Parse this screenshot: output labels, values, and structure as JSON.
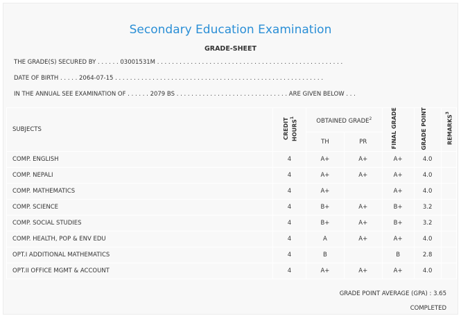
{
  "title": "Secondary Education Examination",
  "subtitle": "GRADE-SHEET",
  "info": {
    "line1": "THE GRADE(S) SECURED BY . . . . . . 03001531M . . . . . . . . . . . . . . . . . . . . . . . . . . . . . . . . . . . . . . . . . . . . . . . . . .",
    "line2": "DATE OF BIRTH . . . . . 2064-07-15 . . . . . . . . . . . . . . . . . . . . . . . . . . . . . . . . . . . . . . . . . . . . . . . . . . . . . . . .",
    "line3": "IN THE ANNUAL SEE EXAMINATION OF . . . . . . 2079 BS . . . . . . . . . . . . . . . . . . . . . . . . . . . . . . ARE GIVEN BELOW . . ."
  },
  "headers": {
    "subjects": "SUBJECTS",
    "credit": "CREDIT HOURS",
    "credit_sup": "1",
    "obtained": "OBTAINED GRADE",
    "obtained_sup": "2",
    "th": "TH",
    "pr": "PR",
    "final": "FINAL GRADE",
    "gp": "GRADE POINT",
    "remarks": "REMARKS",
    "remarks_sup": "3"
  },
  "rows": [
    {
      "subject": "COMP. ENGLISH",
      "credit": "4",
      "th": "A+",
      "pr": "A+",
      "final": "A+",
      "gp": "4.0",
      "remarks": ""
    },
    {
      "subject": "COMP. NEPALI",
      "credit": "4",
      "th": "A+",
      "pr": "A+",
      "final": "A+",
      "gp": "4.0",
      "remarks": ""
    },
    {
      "subject": "COMP. MATHEMATICS",
      "credit": "4",
      "th": "A+",
      "pr": "",
      "final": "A+",
      "gp": "4.0",
      "remarks": ""
    },
    {
      "subject": "COMP. SCIENCE",
      "credit": "4",
      "th": "B+",
      "pr": "A+",
      "final": "B+",
      "gp": "3.2",
      "remarks": ""
    },
    {
      "subject": "COMP. SOCIAL STUDIES",
      "credit": "4",
      "th": "B+",
      "pr": "A+",
      "final": "B+",
      "gp": "3.2",
      "remarks": ""
    },
    {
      "subject": "COMP. HEALTH, POP & ENV EDU",
      "credit": "4",
      "th": "A",
      "pr": "A+",
      "final": "A+",
      "gp": "4.0",
      "remarks": ""
    },
    {
      "subject": "OPT.I ADDITIONAL MATHEMATICS",
      "credit": "4",
      "th": "B",
      "pr": "",
      "final": "B",
      "gp": "2.8",
      "remarks": ""
    },
    {
      "subject": "OPT.II OFFICE MGMT & ACCOUNT",
      "credit": "4",
      "th": "A+",
      "pr": "A+",
      "final": "A+",
      "gp": "4.0",
      "remarks": ""
    }
  ],
  "gpa": "GRADE POINT AVERAGE (GPA) : 3.65",
  "status": "COMPLETED"
}
